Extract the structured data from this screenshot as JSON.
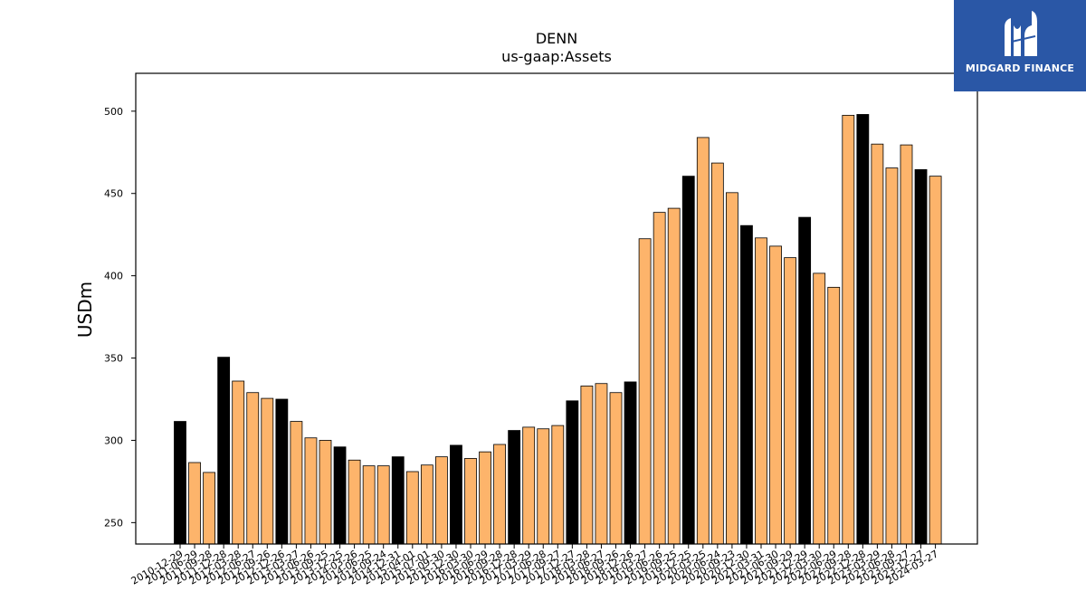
{
  "logo": {
    "text": "MIDGARD FINANCE",
    "background": "#2a57a6"
  },
  "chart_data": {
    "type": "bar",
    "title": "DENN",
    "subtitle": "us-gaap:Assets",
    "ylabel": "USDm",
    "xlabel": "",
    "ylim": [
      237,
      523
    ],
    "yticks": [
      250,
      300,
      350,
      400,
      450,
      500
    ],
    "colors": {
      "fiscal_year_end": "#000000",
      "quarter": "#fdb46b",
      "edge": "#000000"
    },
    "categories": [
      "2010-12-29",
      "2011-06-29",
      "2011-09-28",
      "2011-12-28",
      "2012-03-28",
      "2012-06-27",
      "2012-09-26",
      "2012-12-26",
      "2013-03-27",
      "2013-06-26",
      "2013-09-25",
      "2013-12-25",
      "2014-03-26",
      "2014-06-25",
      "2014-09-24",
      "2014-12-31",
      "2015-04-01",
      "2015-07-01",
      "2015-09-30",
      "2015-12-30",
      "2016-03-30",
      "2016-06-29",
      "2016-09-28",
      "2016-12-28",
      "2017-03-29",
      "2017-06-28",
      "2017-09-27",
      "2017-12-27",
      "2018-03-28",
      "2018-06-27",
      "2018-09-26",
      "2018-12-26",
      "2019-03-27",
      "2019-06-26",
      "2019-09-25",
      "2019-12-25",
      "2020-03-25",
      "2020-06-24",
      "2020-09-23",
      "2020-12-30",
      "2021-03-31",
      "2021-06-30",
      "2021-09-29",
      "2021-12-29",
      "2022-03-30",
      "2022-06-29",
      "2022-09-28",
      "2022-12-28",
      "2023-03-29",
      "2023-06-28",
      "2023-09-27",
      "2023-12-27",
      "2024-03-27"
    ],
    "values": [
      311.5,
      286.5,
      280.5,
      350.5,
      336,
      329,
      325.5,
      325,
      311.5,
      301.5,
      300,
      296,
      288,
      284.5,
      284.5,
      290,
      281,
      285,
      290,
      297,
      289,
      293,
      297.5,
      306,
      308,
      307,
      309,
      324,
      333,
      334.5,
      329,
      335.5,
      422.5,
      438.5,
      441,
      460.5,
      484,
      468.5,
      450.5,
      430.5,
      423,
      418,
      411,
      435.5,
      401.5,
      393,
      497.5,
      498,
      480,
      465.5,
      479.5,
      464.5,
      460.5
    ],
    "highlight": [
      true,
      false,
      false,
      true,
      false,
      false,
      false,
      true,
      false,
      false,
      false,
      true,
      false,
      false,
      false,
      true,
      false,
      false,
      false,
      true,
      false,
      false,
      false,
      true,
      false,
      false,
      false,
      true,
      false,
      false,
      false,
      true,
      false,
      false,
      false,
      true,
      false,
      false,
      false,
      true,
      false,
      false,
      false,
      true,
      false,
      false,
      false,
      true,
      false,
      false,
      false,
      true,
      false
    ],
    "grid": false,
    "legend": "none"
  }
}
